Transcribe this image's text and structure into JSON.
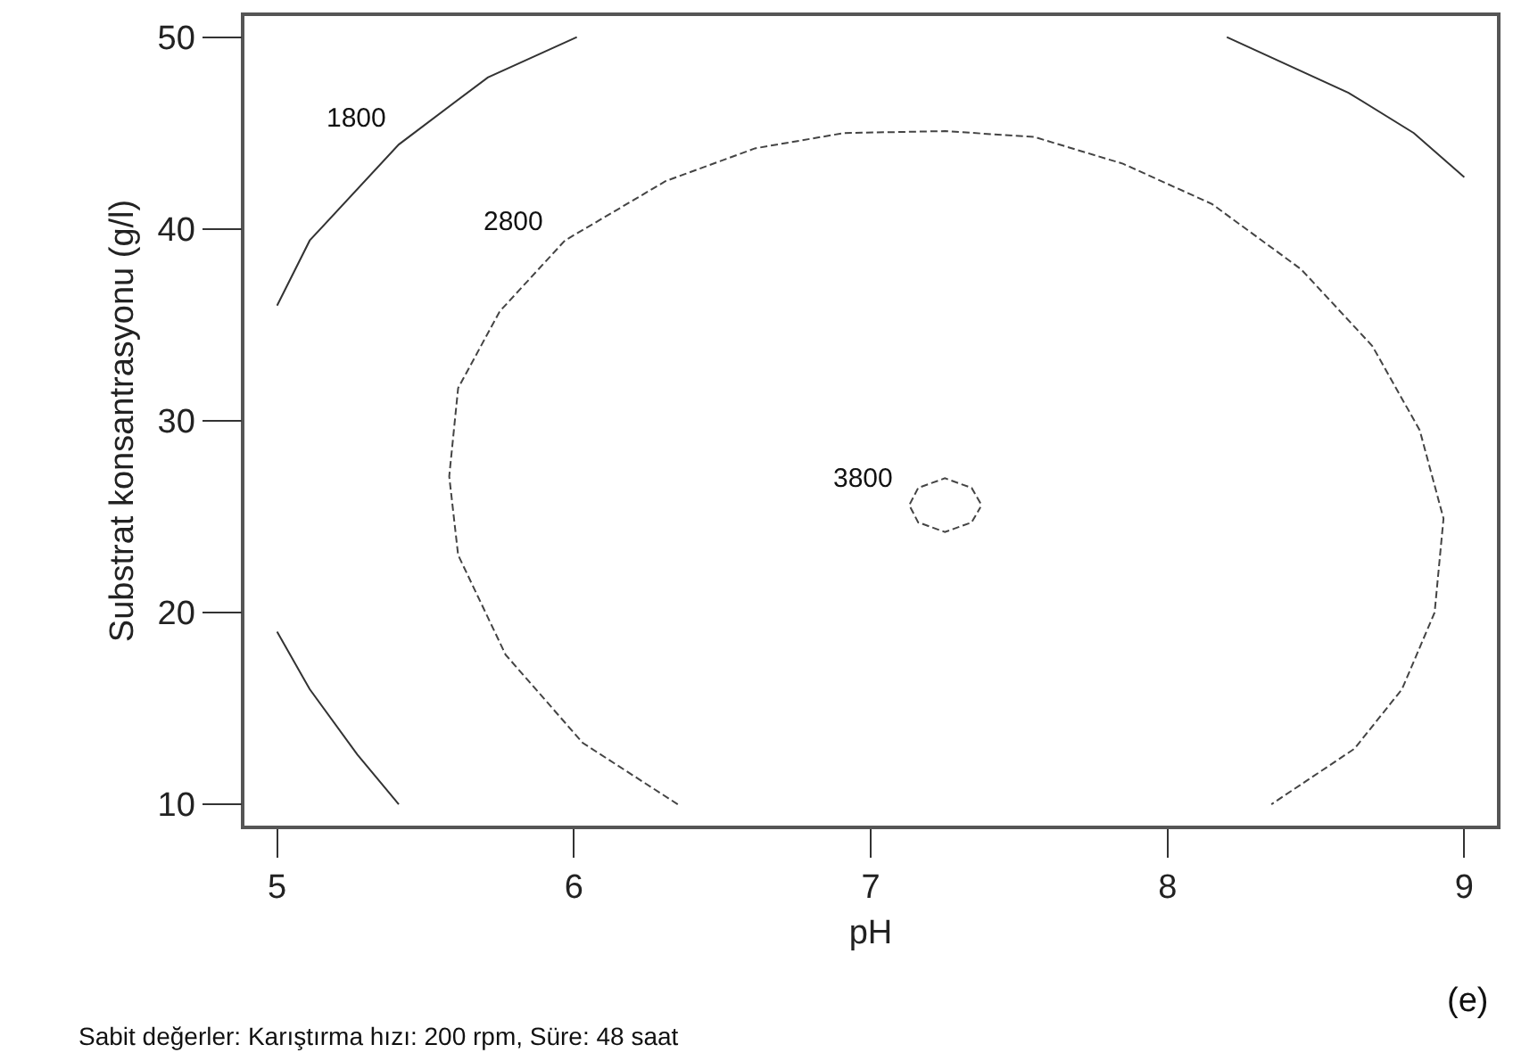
{
  "chart_data": {
    "type": "line",
    "xlabel": "pH",
    "ylabel": "Substrat konsantrasyonu (g/l)",
    "xlim": [
      4.89,
      9.11
    ],
    "ylim": [
      8.89,
      51.1
    ],
    "xticks": [
      5,
      6,
      7,
      8,
      9
    ],
    "yticks": [
      10,
      20,
      30,
      40,
      50
    ],
    "marker": "none",
    "series": [
      {
        "color": "#333333",
        "line_style": "solid",
        "x": [
          5.0,
          5.11,
          5.41,
          5.71,
          6.01
        ],
        "values": [
          36.0,
          39.4,
          44.4,
          47.9,
          50.0
        ]
      },
      {
        "color": "#333333",
        "line_style": "solid",
        "x": [
          5.0,
          5.11,
          5.27,
          5.41
        ],
        "values": [
          19.0,
          16.0,
          12.6,
          10.0
        ]
      },
      {
        "color": "#333333",
        "line_style": "solid",
        "x": [
          8.2,
          8.61,
          8.83,
          9.0
        ],
        "values": [
          50.0,
          47.1,
          45.0,
          42.7
        ]
      },
      {
        "color": "#444444",
        "line_style": "dashed",
        "x": [
          6.35,
          6.03,
          5.77,
          5.61,
          5.58,
          5.61,
          5.75,
          5.97,
          6.31,
          6.61,
          6.91,
          7.25,
          7.55,
          7.85,
          8.15,
          8.45,
          8.69,
          8.85,
          8.93,
          8.9,
          8.79,
          8.63,
          8.35
        ],
        "values": [
          10.0,
          13.2,
          17.8,
          23.0,
          27.1,
          31.7,
          35.7,
          39.4,
          42.5,
          44.2,
          45.0,
          45.1,
          44.8,
          43.4,
          41.3,
          37.9,
          33.9,
          29.5,
          24.9,
          20.0,
          16.0,
          12.9,
          10.0
        ]
      },
      {
        "color": "#444444",
        "line_style": "dashed",
        "x": [
          7.37,
          7.34,
          7.25,
          7.16,
          7.13,
          7.16,
          7.25,
          7.34,
          7.37
        ],
        "values": [
          25.7,
          26.5,
          27.0,
          26.5,
          25.6,
          24.7,
          24.2,
          24.7,
          25.5
        ]
      }
    ],
    "annotations": [
      "1800",
      "2800",
      "3800",
      "(e)",
      "Sabit değerler: Karıştırma hızı: 200 rpm, Süre: 48 saat"
    ]
  }
}
